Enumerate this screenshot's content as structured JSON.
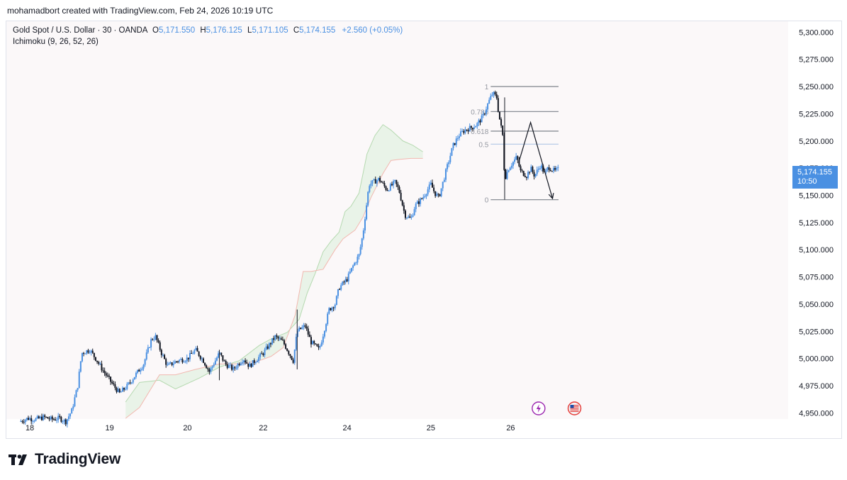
{
  "header": {
    "text": "mohamadbort created with TradingView.com, Feb 24, 2026 10:19 UTC"
  },
  "legend": {
    "symbol": "Gold Spot / U.S. Dollar · 30 · OANDA",
    "open_label": "O",
    "open": "5,171.550",
    "high_label": "H",
    "high": "5,176.125",
    "low_label": "L",
    "low": "5,171.105",
    "close_label": "C",
    "close": "5,174.155",
    "change": "+2.560 (+0.05%)",
    "indicator": "Ichimoku (9, 26, 52, 26)"
  },
  "price_tag": {
    "price": "5,174.155",
    "countdown": "10:50"
  },
  "colors": {
    "up": "#4a90e2",
    "down": "#131722",
    "cloud": "#e3f1e1",
    "accent": "#4a90e2"
  },
  "icons": {
    "event1": "lightning-icon",
    "event2": "us-flag-icon"
  },
  "logo": {
    "text": "TradingView"
  },
  "chart_data": {
    "type": "candlestick",
    "title": "Gold Spot / U.S. Dollar · 30 · OANDA",
    "y_axis": {
      "range": [
        4945,
        5310
      ],
      "tick_values": [
        4950,
        4975,
        5000,
        5025,
        5050,
        5075,
        5100,
        5125,
        5150,
        5175,
        5200,
        5225,
        5250,
        5275,
        5300
      ],
      "tick_labels": [
        "4,950.000",
        "4,975.000",
        "5,000.000",
        "5,025.000",
        "5,050.000",
        "5,075.000",
        "5,100.000",
        "5,125.000",
        "5,150.000",
        "5,175.000",
        "5,200.000",
        "5,225.000",
        "5,250.000",
        "5,275.000",
        "5,300.000"
      ]
    },
    "x_axis": {
      "range": [
        0,
        270
      ],
      "tick_positions": [
        5,
        45,
        84,
        122,
        164,
        206,
        246
      ],
      "tick_labels": [
        "18",
        "19",
        "20",
        "22",
        "24",
        "25",
        "26"
      ]
    },
    "price_path": [
      [
        0,
        4942
      ],
      [
        4,
        4945
      ],
      [
        8,
        4944
      ],
      [
        12,
        4946
      ],
      [
        16,
        4944
      ],
      [
        20,
        4945
      ],
      [
        23,
        4942
      ],
      [
        26,
        4952
      ],
      [
        29,
        4975
      ],
      [
        31,
        5005
      ],
      [
        35,
        5008
      ],
      [
        38,
        5000
      ],
      [
        42,
        4988
      ],
      [
        47,
        4975
      ],
      [
        50,
        4968
      ],
      [
        54,
        4975
      ],
      [
        58,
        4985
      ],
      [
        62,
        4995
      ],
      [
        66,
        5018
      ],
      [
        68,
        5020
      ],
      [
        71,
        5005
      ],
      [
        74,
        4993
      ],
      [
        79,
        4998
      ],
      [
        84,
        5000
      ],
      [
        88,
        5008
      ],
      [
        92,
        4998
      ],
      [
        95,
        4988
      ],
      [
        100,
        5005
      ],
      [
        103,
        4995
      ],
      [
        107,
        4990
      ],
      [
        112,
        5000
      ],
      [
        115,
        4993
      ],
      [
        118,
        4998
      ],
      [
        122,
        5005
      ],
      [
        128,
        5020
      ],
      [
        132,
        5015
      ],
      [
        137,
        4998
      ],
      [
        139,
        5025
      ],
      [
        143,
        5030
      ],
      [
        146,
        5015
      ],
      [
        150,
        5008
      ],
      [
        152,
        5022
      ],
      [
        155,
        5045
      ],
      [
        158,
        5050
      ],
      [
        160,
        5065
      ],
      [
        164,
        5073
      ],
      [
        167,
        5085
      ],
      [
        170,
        5095
      ],
      [
        172,
        5115
      ],
      [
        175,
        5160
      ],
      [
        180,
        5165
      ],
      [
        184,
        5155
      ],
      [
        188,
        5162
      ],
      [
        190,
        5155
      ],
      [
        193,
        5132
      ],
      [
        196,
        5128
      ],
      [
        198,
        5140
      ],
      [
        202,
        5148
      ],
      [
        206,
        5160
      ],
      [
        208,
        5152
      ],
      [
        210,
        5148
      ],
      [
        214,
        5175
      ],
      [
        217,
        5195
      ],
      [
        220,
        5205
      ],
      [
        223,
        5210
      ],
      [
        226,
        5212
      ],
      [
        229,
        5215
      ],
      [
        232,
        5222
      ],
      [
        235,
        5236
      ],
      [
        237,
        5244
      ],
      [
        239,
        5240
      ],
      [
        240,
        5225
      ],
      [
        242,
        5205
      ],
      [
        243,
        5165
      ],
      [
        245,
        5175
      ],
      [
        247,
        5180
      ],
      [
        249,
        5185
      ],
      [
        251,
        5172
      ],
      [
        254,
        5168
      ],
      [
        256,
        5175
      ],
      [
        258,
        5168
      ],
      [
        261,
        5178
      ],
      [
        263,
        5170
      ],
      [
        265,
        5176
      ],
      [
        268,
        5172
      ],
      [
        270,
        5174
      ]
    ],
    "cloud": {
      "upper": [
        [
          53,
          4960
        ],
        [
          60,
          4978
        ],
        [
          70,
          4980
        ],
        [
          78,
          4972
        ],
        [
          90,
          4982
        ],
        [
          100,
          4992
        ],
        [
          110,
          4998
        ],
        [
          120,
          5012
        ],
        [
          126,
          5018
        ],
        [
          134,
          5024
        ],
        [
          140,
          5036
        ],
        [
          144,
          5060
        ],
        [
          148,
          5078
        ],
        [
          152,
          5098
        ],
        [
          156,
          5108
        ],
        [
          160,
          5116
        ],
        [
          163,
          5135
        ],
        [
          166,
          5140
        ],
        [
          170,
          5152
        ],
        [
          174,
          5188
        ],
        [
          178,
          5205
        ],
        [
          182,
          5215
        ],
        [
          186,
          5210
        ],
        [
          192,
          5200
        ],
        [
          197,
          5196
        ],
        [
          202,
          5190
        ]
      ],
      "lower": [
        [
          53,
          4945
        ],
        [
          60,
          4955
        ],
        [
          70,
          4985
        ],
        [
          78,
          4985
        ],
        [
          88,
          4990
        ],
        [
          100,
          4995
        ],
        [
          110,
          4995
        ],
        [
          120,
          4998
        ],
        [
          126,
          5002
        ],
        [
          132,
          5010
        ],
        [
          138,
          5040
        ],
        [
          142,
          5080
        ],
        [
          146,
          5080
        ],
        [
          152,
          5082
        ],
        [
          158,
          5100
        ],
        [
          162,
          5110
        ],
        [
          168,
          5118
        ],
        [
          172,
          5130
        ],
        [
          176,
          5148
        ],
        [
          182,
          5170
        ],
        [
          186,
          5182
        ],
        [
          190,
          5183
        ],
        [
          196,
          5184
        ],
        [
          202,
          5184
        ]
      ]
    },
    "fibonacci": {
      "x_range": [
        236,
        270
      ],
      "levels": [
        {
          "label": "1",
          "value": 5250
        },
        {
          "label": "0.786",
          "value": 5227
        },
        {
          "label": "0.618",
          "value": 5209
        },
        {
          "label": "0.5",
          "value": 5197
        },
        {
          "label": "0",
          "value": 5146
        }
      ]
    },
    "projection": [
      [
        250,
        5180
      ],
      [
        256,
        5217
      ],
      [
        267,
        5147
      ]
    ],
    "events": [
      {
        "x": 260,
        "icon": "lightning-icon"
      },
      {
        "x": 278,
        "icon": "us-flag-icon"
      }
    ],
    "last_price": 5174.155
  }
}
